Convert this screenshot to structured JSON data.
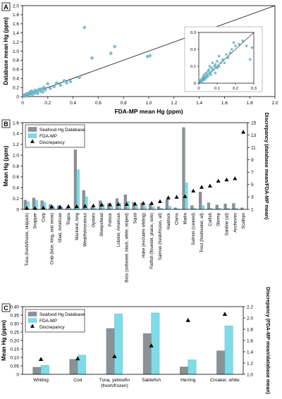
{
  "chart_data": [
    {
      "panel": "A",
      "type": "scatter",
      "xlabel": "FDA-MP mean Hg (ppm)",
      "ylabel": "Database mean Hg (ppm)",
      "xlim": [
        0,
        2.0
      ],
      "ylim": [
        0,
        2.0
      ],
      "xticks": [
        "0",
        "0.2",
        "0.4",
        "0.6",
        "0.8",
        "1.0",
        "1.2",
        "1.4",
        "1.6",
        "1.8",
        "2.0"
      ],
      "yticks": [
        "0",
        "0.2",
        "0.4",
        "0.6",
        "0.8",
        "1.0",
        "1.2",
        "1.4",
        "1.6",
        "1.8",
        "2.0"
      ],
      "marker_color": "#7cc6d9",
      "line_color": "#333333",
      "points": [
        [
          0.01,
          0.02
        ],
        [
          0.02,
          0.01
        ],
        [
          0.02,
          0.04
        ],
        [
          0.03,
          0.03
        ],
        [
          0.03,
          0.06
        ],
        [
          0.04,
          0.02
        ],
        [
          0.04,
          0.05
        ],
        [
          0.05,
          0.08
        ],
        [
          0.05,
          0.04
        ],
        [
          0.06,
          0.07
        ],
        [
          0.06,
          0.1
        ],
        [
          0.07,
          0.06
        ],
        [
          0.07,
          0.12
        ],
        [
          0.08,
          0.09
        ],
        [
          0.08,
          0.05
        ],
        [
          0.09,
          0.11
        ],
        [
          0.1,
          0.08
        ],
        [
          0.1,
          0.14
        ],
        [
          0.11,
          0.1
        ],
        [
          0.12,
          0.13
        ],
        [
          0.12,
          0.07
        ],
        [
          0.13,
          0.16
        ],
        [
          0.14,
          0.12
        ],
        [
          0.15,
          0.17
        ],
        [
          0.16,
          0.1
        ],
        [
          0.17,
          0.2
        ],
        [
          0.18,
          0.15
        ],
        [
          0.2,
          0.28
        ],
        [
          0.22,
          0.18
        ],
        [
          0.25,
          0.22
        ],
        [
          0.27,
          0.3
        ],
        [
          0.3,
          0.25
        ],
        [
          0.33,
          0.35
        ],
        [
          0.35,
          0.3
        ],
        [
          0.38,
          0.33
        ],
        [
          0.45,
          0.42
        ],
        [
          0.49,
          1.52
        ],
        [
          0.55,
          0.85
        ],
        [
          0.7,
          0.95
        ],
        [
          0.73,
          1.1
        ],
        [
          0.99,
          0.88
        ],
        [
          1.01,
          0.9
        ],
        [
          1.45,
          1.45
        ]
      ],
      "inset": {
        "xlim": [
          0,
          0.3
        ],
        "ylim": [
          0,
          0.3
        ],
        "xticks": [
          "0",
          "0.1",
          "0.2",
          "0.3"
        ],
        "yticks": [
          "0",
          "0.1",
          "0.2",
          "0.3"
        ],
        "points": [
          [
            0.005,
            0.01
          ],
          [
            0.01,
            0.02
          ],
          [
            0.015,
            0.005
          ],
          [
            0.02,
            0.03
          ],
          [
            0.02,
            0.015
          ],
          [
            0.025,
            0.04
          ],
          [
            0.03,
            0.02
          ],
          [
            0.03,
            0.05
          ],
          [
            0.035,
            0.035
          ],
          [
            0.04,
            0.06
          ],
          [
            0.04,
            0.03
          ],
          [
            0.045,
            0.05
          ],
          [
            0.05,
            0.07
          ],
          [
            0.05,
            0.04
          ],
          [
            0.055,
            0.08
          ],
          [
            0.06,
            0.06
          ],
          [
            0.06,
            0.1
          ],
          [
            0.065,
            0.05
          ],
          [
            0.07,
            0.09
          ],
          [
            0.07,
            0.07
          ],
          [
            0.075,
            0.12
          ],
          [
            0.08,
            0.08
          ],
          [
            0.085,
            0.1
          ],
          [
            0.09,
            0.11
          ],
          [
            0.09,
            0.06
          ],
          [
            0.1,
            0.13
          ],
          [
            0.1,
            0.09
          ],
          [
            0.11,
            0.1
          ],
          [
            0.11,
            0.16
          ],
          [
            0.12,
            0.12
          ],
          [
            0.13,
            0.14
          ],
          [
            0.14,
            0.12
          ],
          [
            0.15,
            0.17
          ],
          [
            0.16,
            0.15
          ],
          [
            0.17,
            0.18
          ],
          [
            0.18,
            0.2
          ],
          [
            0.19,
            0.24
          ],
          [
            0.2,
            0.22
          ],
          [
            0.22,
            0.23
          ],
          [
            0.24,
            0.25
          ],
          [
            0.26,
            0.22
          ],
          [
            0.28,
            0.14
          ],
          [
            0.29,
            0.21
          ]
        ]
      }
    },
    {
      "panel": "B",
      "type": "bar",
      "ylabel": "Mean Hg (ppm)",
      "y2label": "Discrepancy (database mean/FDA-MP mean)",
      "ylim": [
        0,
        1.6
      ],
      "yticks": [
        "0",
        "0.2",
        "0.4",
        "0.6",
        "0.8",
        "1.0",
        "1.2",
        "1.4",
        "1.6"
      ],
      "y2lim": [
        1,
        15
      ],
      "y2ticks": [
        "1",
        "3",
        "5",
        "7",
        "9",
        "11",
        "13",
        "15"
      ],
      "legend": [
        "Seafood Hg Database",
        "FDA-MP",
        "Discrepancy"
      ],
      "categories": [
        "Tuna (fresh/frozen, skipjack)",
        "Snapper",
        "Carp",
        "Crab (blue, king, and snow)",
        "Shad, American",
        "Tilapia",
        "Mackerel, king",
        "Weakfish/seatrout",
        "Oysters",
        "Sheepshead",
        "Pollock",
        "Lobster, American",
        "Bass (saltwater, black, white, striped)",
        "Squid",
        "Hake (excludes whiting)",
        "Flatfish (flounder, plaice, sole)",
        "Salmon (fresh/frozen, all)",
        "Haddock",
        "Clams",
        "Marlin",
        "Salmon (canned)",
        "Trout (freshwater, all)",
        "Catfish",
        "Shrimp",
        "Sardine (all)",
        "Anchovies",
        "Scallops"
      ],
      "series": [
        {
          "name": "Seafood Hg Database",
          "color": "#8a9296",
          "values": [
            0.17,
            0.21,
            0.16,
            0.09,
            0.07,
            0.03,
            1.1,
            0.35,
            0.04,
            0.16,
            0.11,
            0.2,
            0.27,
            0.13,
            0.12,
            0.1,
            0.05,
            0.18,
            0.03,
            1.51,
            0.07,
            0.32,
            0.12,
            0.08,
            0.1,
            0.11,
            0.03
          ]
        },
        {
          "name": "FDA-MP",
          "color": "#7fdbe8",
          "values": [
            0.14,
            0.17,
            0.13,
            0.06,
            0.05,
            0.02,
            0.73,
            0.23,
            0.02,
            0.09,
            0.06,
            0.11,
            0.15,
            0.07,
            0.06,
            0.05,
            0.02,
            0.06,
            0.01,
            0.49,
            0.02,
            0.07,
            0.02,
            0.02,
            0.02,
            0.02,
            0.0
          ]
        }
      ],
      "discrepancy": [
        1.2,
        1.2,
        1.25,
        1.45,
        1.4,
        1.5,
        1.5,
        1.55,
        1.6,
        1.75,
        1.8,
        1.85,
        1.85,
        1.9,
        2.0,
        2.0,
        2.3,
        2.9,
        3.0,
        3.1,
        4.0,
        4.6,
        4.8,
        5.6,
        5.8,
        6.0,
        13.5
      ]
    },
    {
      "panel": "C",
      "type": "bar",
      "ylabel": "Mean Hg (ppm)",
      "y2label": "Discrepancy (FDA-MP mean/database mean)",
      "ylim": [
        0,
        0.4
      ],
      "yticks": [
        "0",
        "0.05",
        "0.10",
        "0.15",
        "0.20",
        "0.25",
        "0.30",
        "0.35",
        "0.40"
      ],
      "y2lim": [
        1.0,
        2.2
      ],
      "y2ticks": [
        "1.0",
        "1.2",
        "1.4",
        "1.6",
        "1.8",
        "2.0",
        "2.2"
      ],
      "legend": [
        "Seafood Hg Database",
        "FDA-MP",
        "Discrepancy"
      ],
      "categories": [
        "Whiting",
        "Cod",
        "Tuna, yellowfin (fresh/frozen)",
        "Sablefish",
        "Herring",
        "Croaker, white"
      ],
      "category_lines": [
        [
          "Whiting"
        ],
        [
          "Cod"
        ],
        [
          "Tuna, yellowfin",
          "(fresh/frozen)"
        ],
        [
          "Sablefish"
        ],
        [
          "Herring"
        ],
        [
          "Croaker, white"
        ]
      ],
      "series": [
        {
          "name": "Seafood Hg Database",
          "color": "#8a9296",
          "values": [
            0.042,
            0.089,
            0.271,
            0.241,
            0.044,
            0.139
          ]
        },
        {
          "name": "FDA-MP",
          "color": "#7fdbe8",
          "values": [
            0.053,
            0.113,
            0.357,
            0.363,
            0.086,
            0.287
          ]
        }
      ],
      "discrepancy": [
        1.27,
        1.28,
        1.32,
        1.51,
        1.96,
        2.07
      ]
    }
  ]
}
